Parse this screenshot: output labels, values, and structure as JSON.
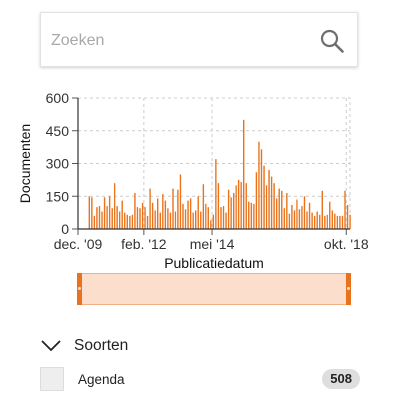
{
  "search": {
    "placeholder": "Zoeken",
    "value": ""
  },
  "icons": {
    "search": "search-icon",
    "chevron": "chevron-down-icon"
  },
  "colors": {
    "accent": "#e8731c",
    "bar": "#e8731c",
    "slider_fill": "#fbdfcc",
    "grid": "#cccccc",
    "badge": "#dedede"
  },
  "chart_data": {
    "type": "bar",
    "ylabel": "Documenten",
    "xlabel": "Publicatiedatum",
    "ylim": [
      0,
      600
    ],
    "yticks": [
      0,
      150,
      300,
      450,
      600
    ],
    "xlim": [
      "2009-12-01",
      "2018-11-15"
    ],
    "xticks": [
      {
        "date": "2009-12-01",
        "label": "dec. '09"
      },
      {
        "date": "2012-02-01",
        "label": "feb. '12"
      },
      {
        "date": "2014-05-01",
        "label": "mei '14"
      },
      {
        "date": "2018-10-01",
        "label": "okt. '18"
      }
    ],
    "grid": true,
    "bar_start": "2010-04-01",
    "bar_interval": "month",
    "values": [
      150,
      145,
      60,
      100,
      105,
      80,
      145,
      105,
      150,
      95,
      210,
      105,
      80,
      130,
      75,
      65,
      60,
      65,
      165,
      100,
      95,
      120,
      100,
      60,
      185,
      120,
      85,
      140,
      75,
      160,
      130,
      95,
      75,
      185,
      80,
      180,
      250,
      115,
      90,
      130,
      140,
      75,
      85,
      150,
      80,
      205,
      115,
      100,
      40,
      65,
      320,
      210,
      100,
      105,
      75,
      180,
      145,
      165,
      200,
      225,
      215,
      500,
      210,
      125,
      120,
      115,
      260,
      400,
      365,
      290,
      200,
      270,
      240,
      210,
      140,
      185,
      175,
      95,
      165,
      70,
      110,
      85,
      135,
      90,
      105,
      150,
      80,
      120,
      75,
      60,
      80,
      65,
      175,
      60,
      65,
      125,
      85,
      70,
      60,
      60,
      60,
      175,
      110,
      65
    ]
  },
  "range_slider": {
    "start": 0,
    "end": 1
  },
  "facet": {
    "title": "Soorten",
    "items": [
      {
        "label": "Agenda",
        "count": "508"
      }
    ]
  }
}
